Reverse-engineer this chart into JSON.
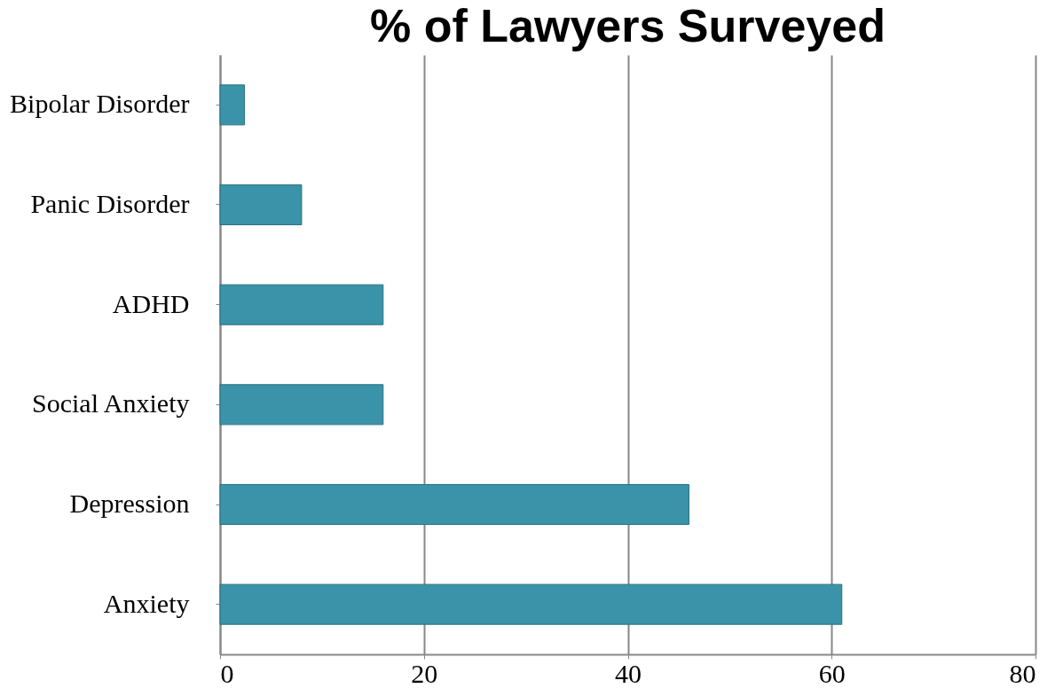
{
  "chart_data": {
    "type": "bar",
    "orientation": "horizontal",
    "title": "% of Lawyers Surveyed",
    "categories": [
      "Bipolar Disorder",
      "Panic Disorder",
      "ADHD",
      "Social Anxiety",
      "Depression",
      "Anxiety"
    ],
    "values": [
      2.4,
      8,
      16,
      16,
      46,
      61
    ],
    "color": "#3a93a8",
    "xlim": [
      0,
      80
    ],
    "xticks": [
      0,
      20,
      40,
      60,
      80
    ],
    "grid": "x"
  }
}
